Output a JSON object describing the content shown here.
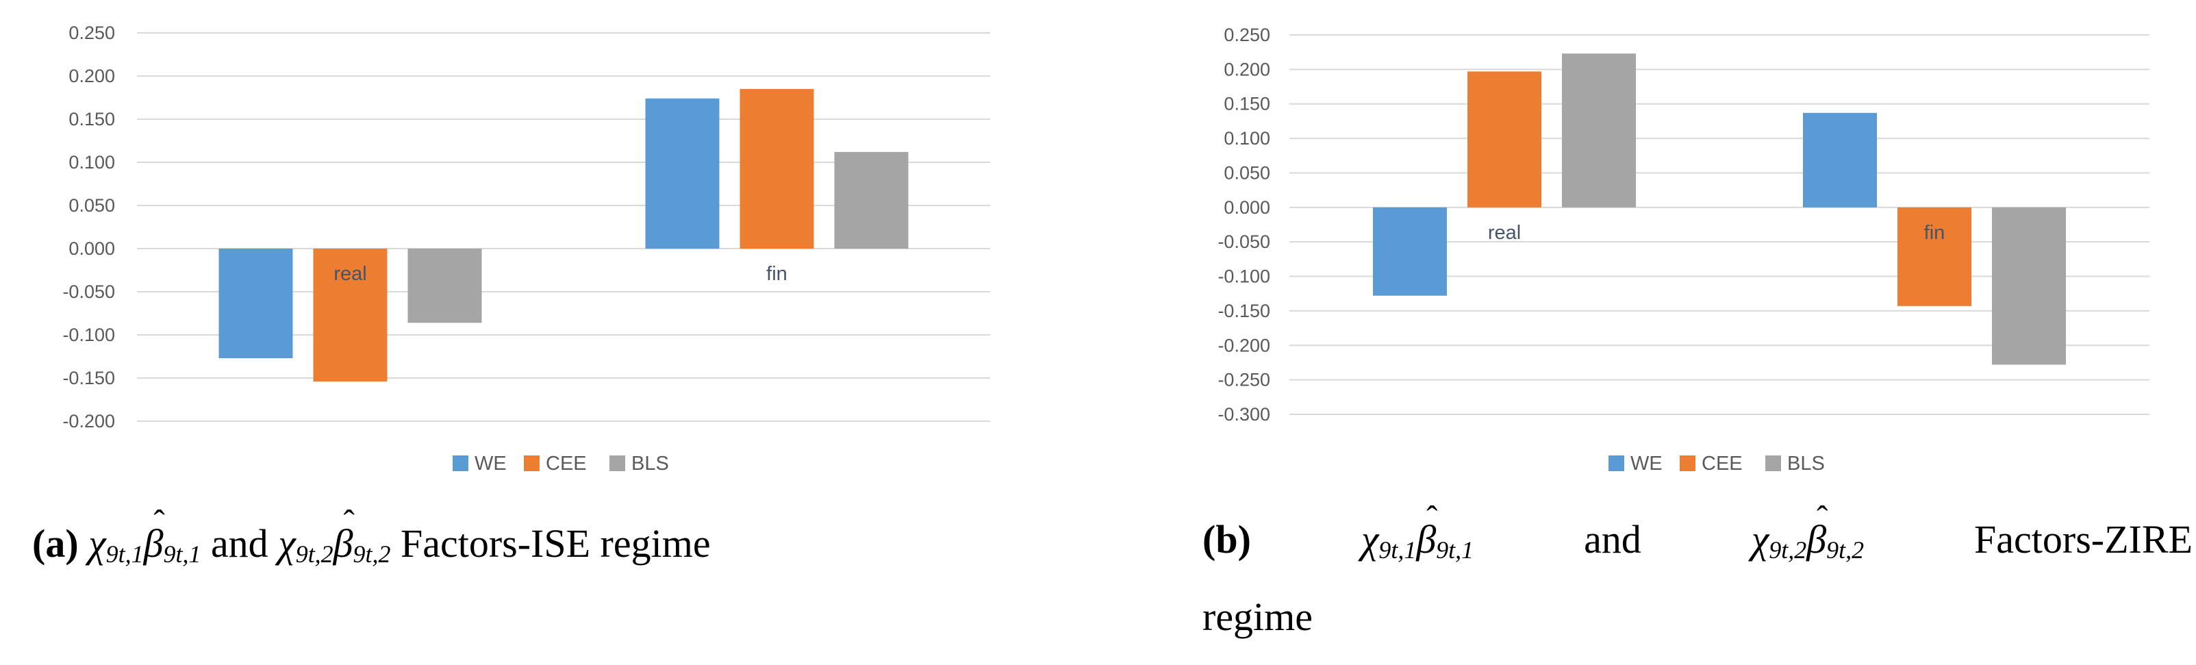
{
  "page": {
    "background": "#ffffff"
  },
  "chart_data": [
    {
      "type": "bar",
      "title": "",
      "xlabel": "",
      "ylabel": "",
      "categories": [
        "real",
        "fin"
      ],
      "series": [
        {
          "name": "WE",
          "color": "#5B9BD5",
          "values": [
            -0.127,
            0.174
          ]
        },
        {
          "name": "CEE",
          "color": "#ED7D31",
          "values": [
            -0.154,
            0.185
          ]
        },
        {
          "name": "BLS",
          "color": "#A5A5A5",
          "values": [
            -0.086,
            0.112
          ]
        }
      ],
      "ylim": [
        -0.2,
        0.25
      ],
      "y_step": 0.05,
      "tick_decimals": 3,
      "grid": true,
      "legend_position": "bottom",
      "category_label_position": "below-zero-line"
    },
    {
      "type": "bar",
      "title": "",
      "xlabel": "",
      "ylabel": "",
      "categories": [
        "real",
        "fin"
      ],
      "series": [
        {
          "name": "WE",
          "color": "#5B9BD5",
          "values": [
            -0.128,
            0.137
          ]
        },
        {
          "name": "CEE",
          "color": "#ED7D31",
          "values": [
            0.197,
            -0.143
          ]
        },
        {
          "name": "BLS",
          "color": "#A5A5A5",
          "values": [
            0.223,
            -0.228
          ]
        }
      ],
      "ylim": [
        -0.3,
        0.25
      ],
      "y_step": 0.05,
      "tick_decimals": 3,
      "grid": true,
      "legend_position": "bottom",
      "category_label_position": "below-zero-line"
    }
  ],
  "captions": {
    "a": {
      "label": "(a)",
      "formula1": {
        "chi": "χ",
        "sub": "9t,1",
        "beta": "β",
        "hat": "ˆ"
      },
      "and": "and",
      "formula2": {
        "chi": "χ",
        "sub": "9t,2",
        "beta": "β",
        "hat": "ˆ"
      },
      "tail": "Factors-ISE regime"
    },
    "b": {
      "label": "(b)",
      "formula1": {
        "chi": "χ",
        "sub": "9t,1",
        "beta": "β",
        "hat": "ˆ"
      },
      "and": "and",
      "formula2": {
        "chi": "χ",
        "sub": "9t,2",
        "beta": "β",
        "hat": "ˆ"
      },
      "tail": "Factors-ZIRE",
      "tail2": "regime"
    }
  },
  "colors": {
    "gridline": "#d9d9d9",
    "tick_label": "#595959",
    "category_label": "#44546A",
    "legend_label": "#595959"
  }
}
